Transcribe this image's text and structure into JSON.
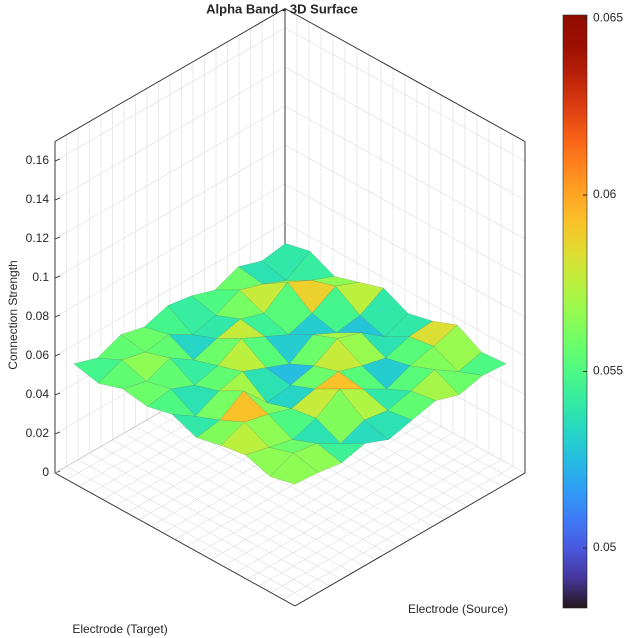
{
  "chart_data": {
    "type": "surface",
    "title": "Alpha Band - 3D Surface",
    "xlabel": "Electrode (Source)",
    "ylabel": "Electrode (Target)",
    "zlabel": "Connection Strength",
    "zlim": [
      0,
      0.17
    ],
    "zticks": [
      0,
      0.02,
      0.04,
      0.06,
      0.08,
      0.1,
      0.12,
      0.14,
      0.16
    ],
    "grid": true,
    "colormap": "turbo",
    "clim": [
      0.0483,
      0.0651
    ],
    "colorbar_ticks": [
      0.05,
      0.055,
      0.06,
      0.065
    ],
    "z": [
      [
        0.055,
        0.058,
        0.052,
        0.056,
        0.06,
        0.054,
        0.057,
        0.062,
        0.055,
        0.056
      ],
      [
        0.053,
        0.05,
        0.057,
        0.061,
        0.053,
        0.049,
        0.056,
        0.058,
        0.052,
        0.057
      ],
      [
        0.057,
        0.055,
        0.063,
        0.054,
        0.051,
        0.058,
        0.052,
        0.055,
        0.06,
        0.054
      ],
      [
        0.052,
        0.059,
        0.054,
        0.05,
        0.057,
        0.062,
        0.055,
        0.05,
        0.056,
        0.058
      ],
      [
        0.056,
        0.053,
        0.058,
        0.056,
        0.049,
        0.055,
        0.059,
        0.057,
        0.053,
        0.055
      ],
      [
        0.058,
        0.05,
        0.055,
        0.062,
        0.054,
        0.052,
        0.057,
        0.064,
        0.055,
        0.052
      ],
      [
        0.054,
        0.057,
        0.051,
        0.055,
        0.059,
        0.05,
        0.054,
        0.056,
        0.05,
        0.057
      ],
      [
        0.057,
        0.055,
        0.059,
        0.052,
        0.056,
        0.063,
        0.058,
        0.052,
        0.057,
        0.054
      ],
      [
        0.052,
        0.058,
        0.054,
        0.057,
        0.05,
        0.055,
        0.061,
        0.055,
        0.059,
        0.056
      ],
      [
        0.056,
        0.053,
        0.057,
        0.055,
        0.058,
        0.053,
        0.056,
        0.058,
        0.054,
        0.057
      ]
    ]
  }
}
